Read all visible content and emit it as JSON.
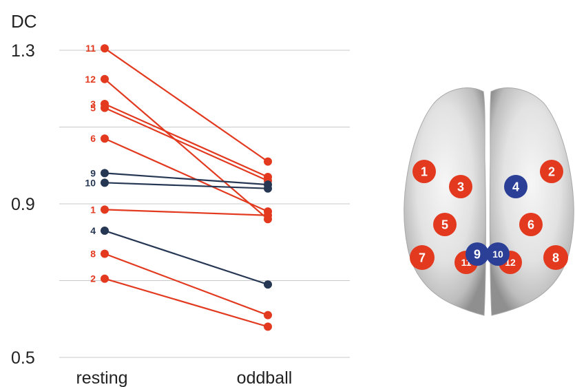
{
  "chart_data": {
    "type": "line",
    "ylabel": "DC",
    "ylim": [
      0.5,
      1.3
    ],
    "yticks": [
      {
        "value": 1.3,
        "label": "1.3",
        "labeled": true
      },
      {
        "value": 1.1,
        "label": "",
        "labeled": false
      },
      {
        "value": 0.9,
        "label": "0.9",
        "labeled": true
      },
      {
        "value": 0.7,
        "label": "",
        "labeled": false
      },
      {
        "value": 0.5,
        "label": "0.5",
        "labeled": true
      }
    ],
    "categories": [
      "resting",
      "oddball"
    ],
    "grid": true,
    "series": [
      {
        "name": "11",
        "group": "red",
        "values": [
          1.305,
          1.01
        ]
      },
      {
        "name": "12",
        "group": "red",
        "values": [
          1.225,
          0.86
        ]
      },
      {
        "name": "3",
        "group": "red",
        "values": [
          1.16,
          0.97
        ]
      },
      {
        "name": "5",
        "group": "red",
        "values": [
          1.15,
          0.96
        ]
      },
      {
        "name": "6",
        "group": "red",
        "values": [
          1.07,
          0.88
        ]
      },
      {
        "name": "9",
        "group": "blue",
        "values": [
          0.98,
          0.95
        ]
      },
      {
        "name": "10",
        "group": "blue",
        "values": [
          0.955,
          0.94
        ]
      },
      {
        "name": "1",
        "group": "red",
        "values": [
          0.885,
          0.87
        ]
      },
      {
        "name": "4",
        "group": "blue",
        "values": [
          0.83,
          0.69
        ]
      },
      {
        "name": "8",
        "group": "red",
        "values": [
          0.77,
          0.61
        ]
      },
      {
        "name": "2",
        "group": "red",
        "values": [
          0.705,
          0.58
        ]
      }
    ]
  },
  "brain_map": {
    "regions": [
      {
        "label": "1",
        "group": "red"
      },
      {
        "label": "2",
        "group": "red"
      },
      {
        "label": "3",
        "group": "red"
      },
      {
        "label": "4",
        "group": "blue"
      },
      {
        "label": "5",
        "group": "red"
      },
      {
        "label": "6",
        "group": "red"
      },
      {
        "label": "7",
        "group": "red"
      },
      {
        "label": "8",
        "group": "red"
      },
      {
        "label": "9",
        "group": "blue"
      },
      {
        "label": "10",
        "group": "blue"
      },
      {
        "label": "11",
        "group": "red"
      },
      {
        "label": "12",
        "group": "red"
      }
    ]
  },
  "colors": {
    "red": "#e2391f",
    "blue_line": "#263754",
    "blue_node": "#2b3f97",
    "grid": "#c8c8c8",
    "text": "#222222",
    "brain_light": "#ececec",
    "brain_dark": "#9a9a9a"
  }
}
